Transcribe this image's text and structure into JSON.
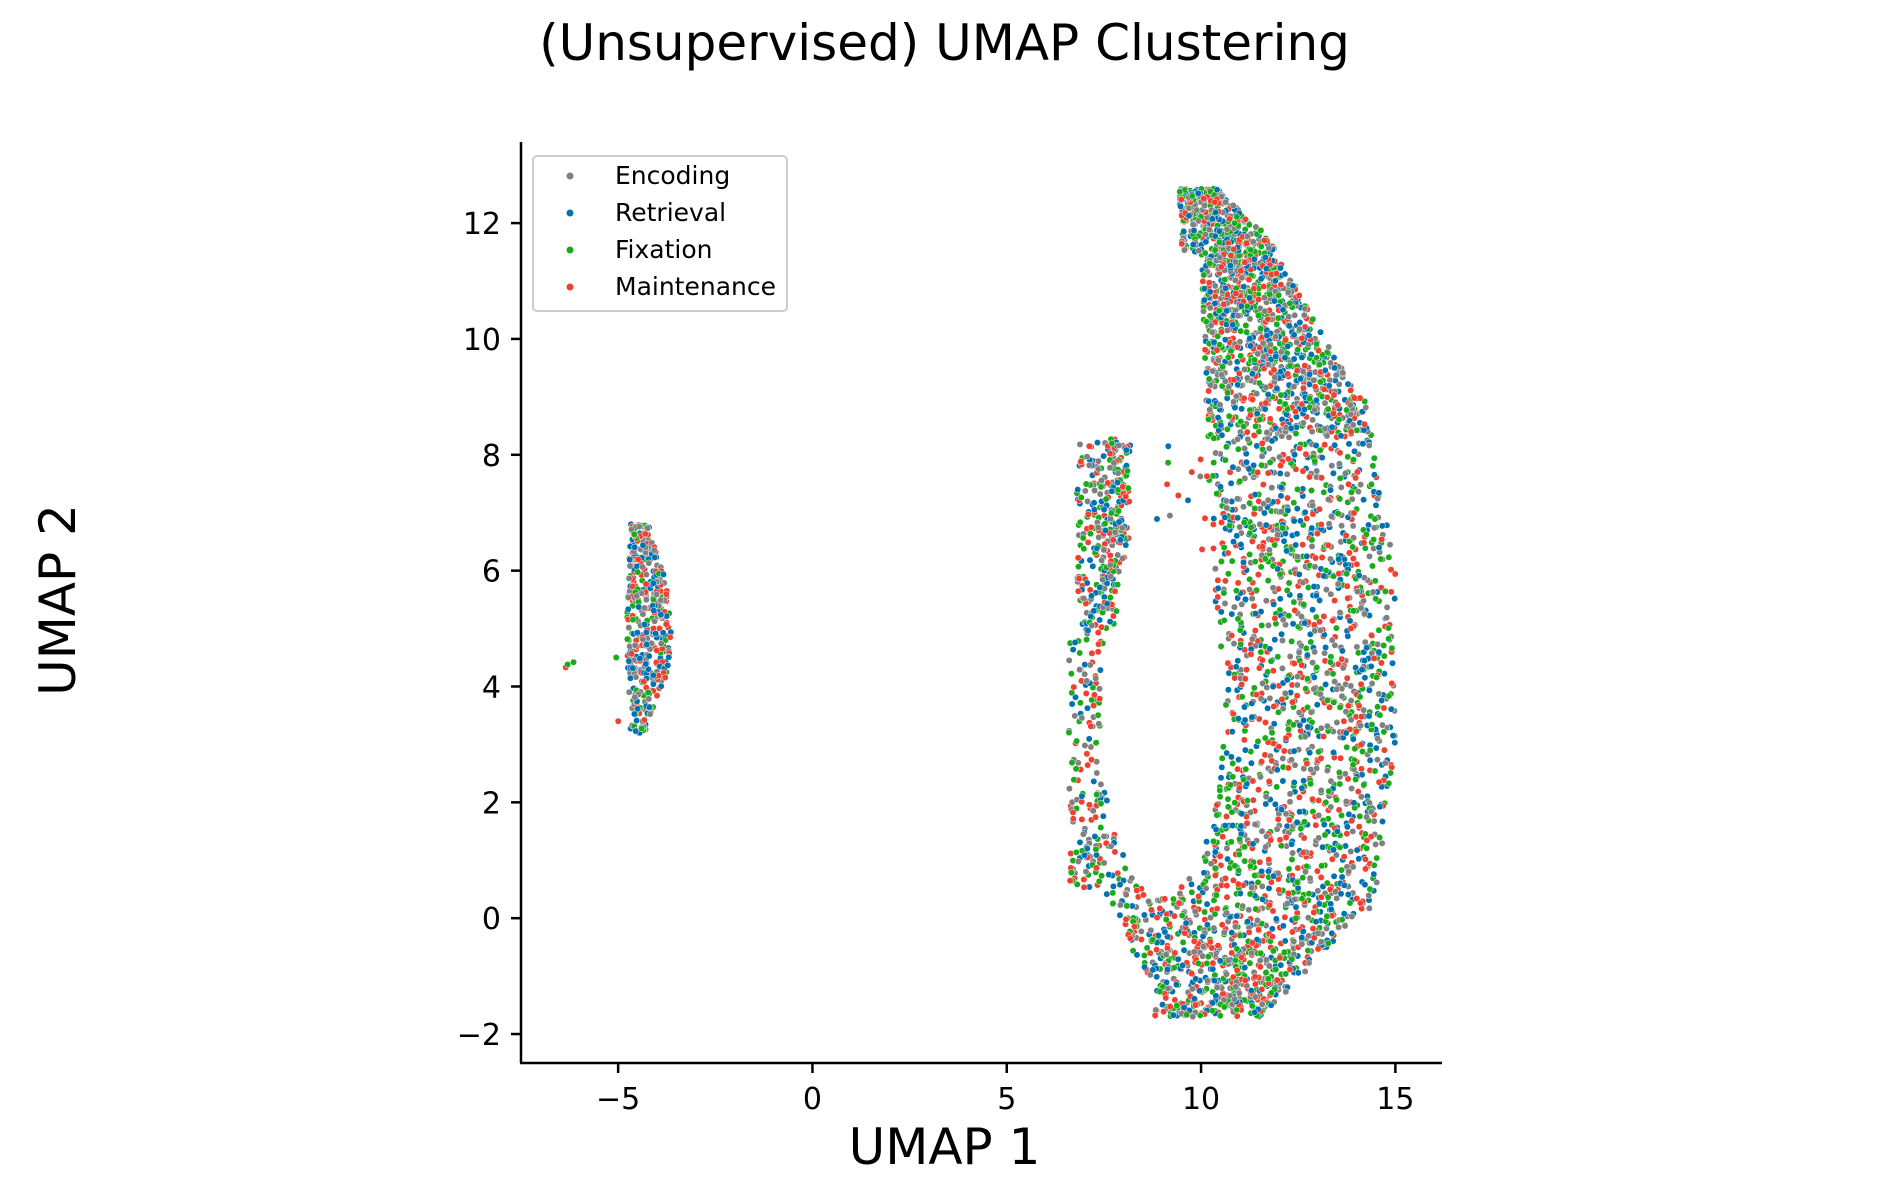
{
  "chart_data": {
    "type": "scatter",
    "title": "(Unsupervised) UMAP Clustering",
    "xlabel": "UMAP 1",
    "ylabel": "UMAP 2",
    "xlim": [
      -7.5,
      16.2
    ],
    "ylim": [
      -2.5,
      13.4
    ],
    "xticks": [
      -5,
      0,
      5,
      10,
      15
    ],
    "xtick_labels": [
      "−5",
      "0",
      "5",
      "10",
      "15"
    ],
    "yticks": [
      -2,
      0,
      2,
      4,
      6,
      8,
      10,
      12
    ],
    "ytick_labels": [
      "−2",
      "0",
      "2",
      "4",
      "6",
      "8",
      "10",
      "12"
    ],
    "grid": false,
    "legend_position": "top-left",
    "series": [
      {
        "name": "Encoding",
        "color": "#808080"
      },
      {
        "name": "Retrieval",
        "color": "#0072b2"
      },
      {
        "name": "Fixation",
        "color": "#1aab1a"
      },
      {
        "name": "Maintenance",
        "color": "#f0402f"
      }
    ],
    "clusters": [
      {
        "description": "small cluster",
        "x_range": [
          -5.1,
          -3.6
        ],
        "y_range": [
          3.2,
          6.8
        ]
      },
      {
        "description": "outlier group",
        "x_range": [
          -6.4,
          -6.1
        ],
        "y_range": [
          4.3,
          4.4
        ]
      },
      {
        "description": "large crescent cluster",
        "x_range": [
          6.6,
          15.0
        ],
        "y_range": [
          -1.7,
          12.6
        ]
      }
    ]
  }
}
